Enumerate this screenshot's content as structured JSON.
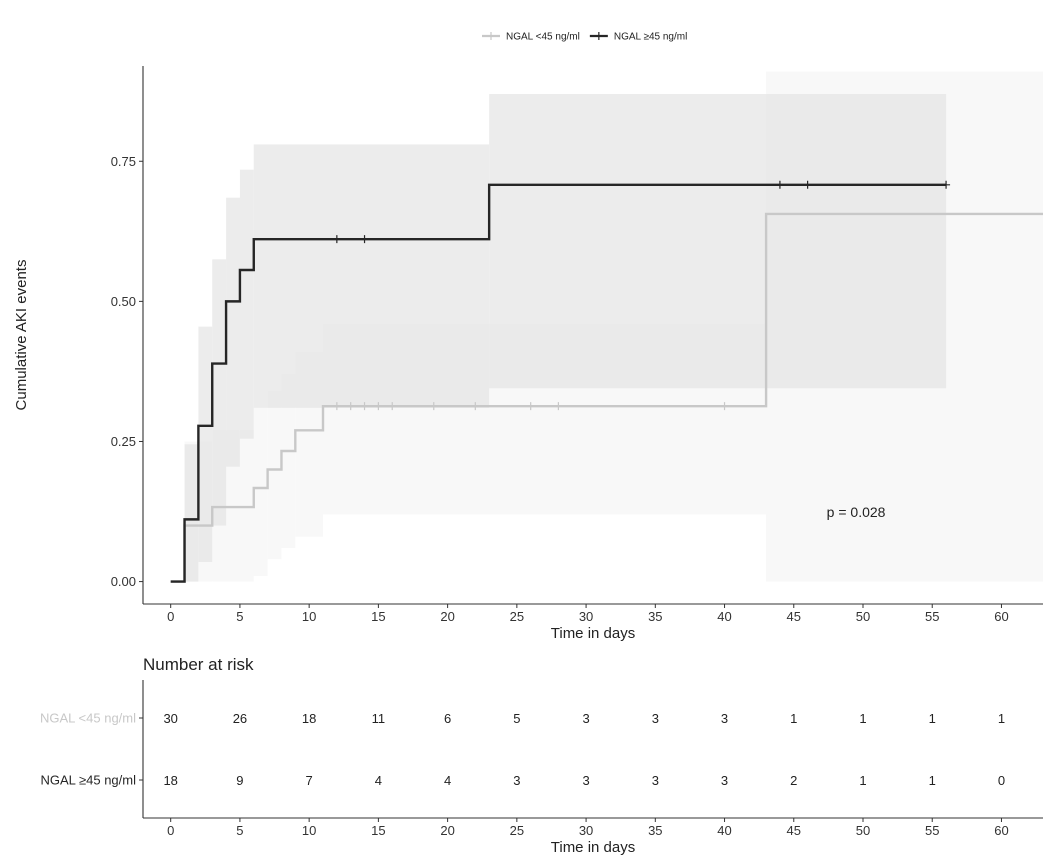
{
  "chart_data": {
    "type": "line",
    "subtype": "kaplan-meier-cumulative-incidence",
    "xlabel": "Time in days",
    "ylabel": "Cumulative AKI events",
    "xlim": [
      -2,
      63
    ],
    "ylim": [
      -0.04,
      0.92
    ],
    "xticks": [
      0,
      5,
      10,
      15,
      20,
      25,
      30,
      35,
      40,
      45,
      50,
      55,
      60
    ],
    "yticks": [
      0.0,
      0.25,
      0.5,
      0.75
    ],
    "ytick_labels": [
      "0.00",
      "0.25",
      "0.50",
      "0.75"
    ],
    "annotation": "p = 0.028",
    "annotation_pos": [
      49.5,
      0.115
    ],
    "legend_position": "top",
    "series": [
      {
        "name": "NGAL <45 ng/ml",
        "color": "#c8c8c8",
        "band_color": "#f6f6f6",
        "end_x": 63,
        "steps": [
          [
            0,
            0
          ],
          [
            1,
            0.1
          ],
          [
            3,
            0.133
          ],
          [
            6,
            0.167
          ],
          [
            7,
            0.2
          ],
          [
            8,
            0.233
          ],
          [
            9,
            0.27
          ],
          [
            11,
            0.313
          ],
          [
            43,
            0.656
          ]
        ],
        "ci_steps": [
          [
            1,
            0,
            0.25
          ],
          [
            3,
            0,
            0.27
          ],
          [
            6,
            0.01,
            0.31
          ],
          [
            7,
            0.04,
            0.34
          ],
          [
            8,
            0.06,
            0.37
          ],
          [
            9,
            0.08,
            0.41
          ],
          [
            11,
            0.12,
            0.46
          ],
          [
            43,
            0,
            0.91
          ]
        ],
        "censors": [
          [
            12,
            0.313
          ],
          [
            13,
            0.313
          ],
          [
            14,
            0.313
          ],
          [
            15,
            0.313
          ],
          [
            16,
            0.313
          ],
          [
            19,
            0.313
          ],
          [
            22,
            0.313
          ],
          [
            26,
            0.313
          ],
          [
            28,
            0.313
          ],
          [
            40,
            0.313
          ]
        ]
      },
      {
        "name": "NGAL ≥45 ng/ml",
        "color": "#262626",
        "band_color": "#e6e6e6",
        "end_x": 56,
        "steps": [
          [
            0,
            0
          ],
          [
            1,
            0.111
          ],
          [
            2,
            0.278
          ],
          [
            3,
            0.389
          ],
          [
            4,
            0.5
          ],
          [
            5,
            0.556
          ],
          [
            6,
            0.611
          ],
          [
            23,
            0.708
          ]
        ],
        "ci_steps": [
          [
            1,
            0,
            0.245
          ],
          [
            2,
            0.035,
            0.455
          ],
          [
            3,
            0.1,
            0.575
          ],
          [
            4,
            0.205,
            0.685
          ],
          [
            5,
            0.255,
            0.735
          ],
          [
            6,
            0.31,
            0.78
          ],
          [
            23,
            0.345,
            0.87
          ]
        ],
        "censors": [
          [
            12,
            0.611
          ],
          [
            14,
            0.611
          ],
          [
            44,
            0.708
          ],
          [
            46,
            0.708
          ],
          [
            56,
            0.708
          ]
        ]
      }
    ]
  },
  "risk_table": {
    "title": "Number at risk",
    "xlabel": "Time in days",
    "times": [
      0,
      5,
      10,
      15,
      20,
      25,
      30,
      35,
      40,
      45,
      50,
      55,
      60
    ],
    "rows": [
      {
        "name": "NGAL <45 ng/ml",
        "color": "#c8c8c8",
        "counts": [
          30,
          26,
          18,
          11,
          6,
          5,
          3,
          3,
          3,
          1,
          1,
          1,
          1
        ]
      },
      {
        "name": "NGAL ≥45 ng/ml",
        "color": "#262626",
        "counts": [
          18,
          9,
          7,
          4,
          4,
          3,
          3,
          3,
          3,
          2,
          1,
          1,
          0
        ]
      }
    ]
  }
}
